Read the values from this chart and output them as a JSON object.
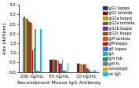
{
  "title": "Recombinant Mouse IgG Antibody",
  "ylabel": "Abs (405nm)",
  "groups": [
    "200 ng/mL",
    "50 ng/mL",
    "10 ng/mL"
  ],
  "series": [
    {
      "label": "IgG1 kappa",
      "color": "#1f3864",
      "values": [
        2.85,
        0.62,
        0.42
      ]
    },
    {
      "label": "IgG1 lambda",
      "color": "#8b0000",
      "values": [
        2.9,
        0.63,
        0.44
      ]
    },
    {
      "label": "IgG2a kappa",
      "color": "#c8a000",
      "values": [
        2.8,
        0.64,
        0.42
      ]
    },
    {
      "label": "IgG2a lambda",
      "color": "#556b2f",
      "values": [
        2.75,
        0.63,
        0.41
      ]
    },
    {
      "label": "IgG2b kappa",
      "color": "#7b2d8b",
      "values": [
        2.65,
        0.62,
        0.4
      ]
    },
    {
      "label": "IgG2c kappa",
      "color": "#8b4513",
      "values": [
        2.6,
        0.61,
        0.39
      ]
    },
    {
      "label": "IgM lambda",
      "color": "#e05000",
      "values": [
        2.55,
        0.6,
        0.38
      ]
    },
    {
      "label": "IgM kappa",
      "color": "#d40000",
      "values": [
        1.15,
        0.42,
        0.18
      ]
    },
    {
      "label": "IgE kappa",
      "color": "#4169e1",
      "values": [
        1.25,
        0.44,
        0.19
      ]
    },
    {
      "label": "IgA",
      "color": "#20b2aa",
      "values": [
        2.22,
        0.62,
        0.09
      ]
    },
    {
      "label": "Igm fab",
      "color": "#2e8b57",
      "values": [
        0.05,
        0.05,
        0.04
      ]
    },
    {
      "label": "IgM Fc",
      "color": "#708090",
      "values": [
        0.05,
        0.05,
        0.04
      ]
    },
    {
      "label": "humanIgG",
      "color": "#daa520",
      "values": [
        0.05,
        0.05,
        0.04
      ]
    },
    {
      "label": "rat IgG",
      "color": "#00bfff",
      "values": [
        2.22,
        0.45,
        0.1
      ]
    }
  ],
  "ylim": [
    0,
    3.5
  ],
  "yticks": [
    0,
    0.5,
    1.0,
    1.5,
    2.0,
    2.5,
    3.0,
    3.5
  ],
  "background_color": "#ffffff",
  "legend_fontsize": 3.5,
  "axis_fontsize": 4.5,
  "tick_fontsize": 4.0
}
